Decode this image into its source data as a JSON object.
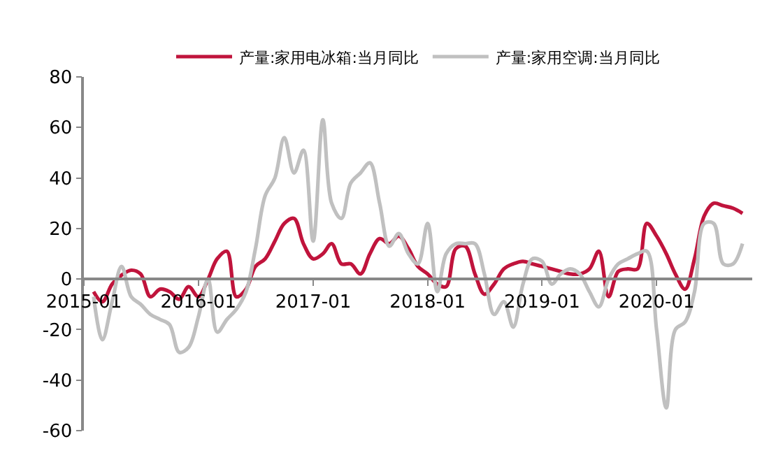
{
  "chart_data": {
    "type": "line",
    "xlim": [
      "2015-01",
      "2020-11"
    ],
    "xticks": [
      {
        "value": "2015-01",
        "label": "2015-01"
      },
      {
        "value": "2016-01",
        "label": "2016-01"
      },
      {
        "value": "2017-01",
        "label": "2017-01"
      },
      {
        "value": "2018-01",
        "label": "2018-01"
      },
      {
        "value": "2019-01",
        "label": "2019-01"
      },
      {
        "value": "2020-01",
        "label": "2020-01"
      }
    ],
    "ylim": [
      -60,
      80
    ],
    "yticks": [
      -60,
      -40,
      -20,
      0,
      20,
      40,
      60,
      80
    ],
    "x": [
      "2015-02",
      "2015-03",
      "2015-04",
      "2015-05",
      "2015-06",
      "2015-07",
      "2015-08",
      "2015-09",
      "2015-10",
      "2015-11",
      "2015-12",
      "2016-01",
      "2016-02",
      "2016-03",
      "2016-04",
      "2016-05",
      "2016-06",
      "2016-07",
      "2016-08",
      "2016-09",
      "2016-10",
      "2016-11",
      "2016-12",
      "2017-01",
      "2017-02",
      "2017-03",
      "2017-04",
      "2017-05",
      "2017-06",
      "2017-07",
      "2017-08",
      "2017-09",
      "2017-10",
      "2017-11",
      "2017-12",
      "2018-01",
      "2018-02",
      "2018-03",
      "2018-04",
      "2018-05",
      "2018-06",
      "2018-07",
      "2018-08",
      "2018-09",
      "2018-10",
      "2018-11",
      "2018-12",
      "2019-01",
      "2019-02",
      "2019-03",
      "2019-04",
      "2019-05",
      "2019-06",
      "2019-07",
      "2019-08",
      "2019-09",
      "2019-10",
      "2019-11",
      "2019-12",
      "2020-01",
      "2020-02",
      "2020-03",
      "2020-04",
      "2020-05",
      "2020-06",
      "2020-07",
      "2020-08",
      "2020-09",
      "2020-10"
    ],
    "legend": "top",
    "marker": "none",
    "line_style": "solid",
    "series": [
      {
        "name": "产量:家用电冰箱:当月同比",
        "color": "#c0143c",
        "values": [
          -5,
          -9,
          -2,
          1.5,
          3.5,
          2,
          -7,
          -4,
          -5,
          -8,
          -3,
          -7,
          0,
          8,
          11,
          -7,
          -4,
          5,
          8,
          15,
          22,
          24,
          14,
          8,
          10,
          14,
          6,
          6,
          2,
          10,
          16,
          14,
          17,
          12,
          5,
          2,
          -2,
          -3,
          12,
          13,
          2,
          -6,
          -2,
          4,
          6,
          7,
          6,
          5,
          4,
          3,
          2,
          2,
          4,
          11,
          -7,
          3,
          4,
          4,
          22,
          17,
          10,
          2,
          -4,
          8,
          25,
          30,
          29,
          28,
          26
        ]
      },
      {
        "name": "产量:家用空调:当月同比",
        "color": "#c0c0c0",
        "values": [
          -7,
          -24,
          -9,
          5,
          -7,
          -10,
          -14,
          -16,
          -18,
          -29,
          -27,
          -15,
          0,
          -21,
          -16,
          -12,
          -5,
          12,
          33,
          40,
          56,
          42,
          51,
          15,
          63,
          30,
          24,
          38,
          42,
          46,
          30,
          13,
          18,
          10,
          6,
          22,
          -5,
          10,
          14,
          14,
          14,
          2,
          -14,
          -9,
          -19,
          -2,
          8,
          7,
          -2,
          2,
          4,
          2,
          -5,
          -11,
          0,
          6,
          8,
          10,
          11,
          -20,
          -51,
          -20,
          -17,
          -5,
          22,
          22,
          6,
          6,
          14
        ]
      }
    ]
  }
}
